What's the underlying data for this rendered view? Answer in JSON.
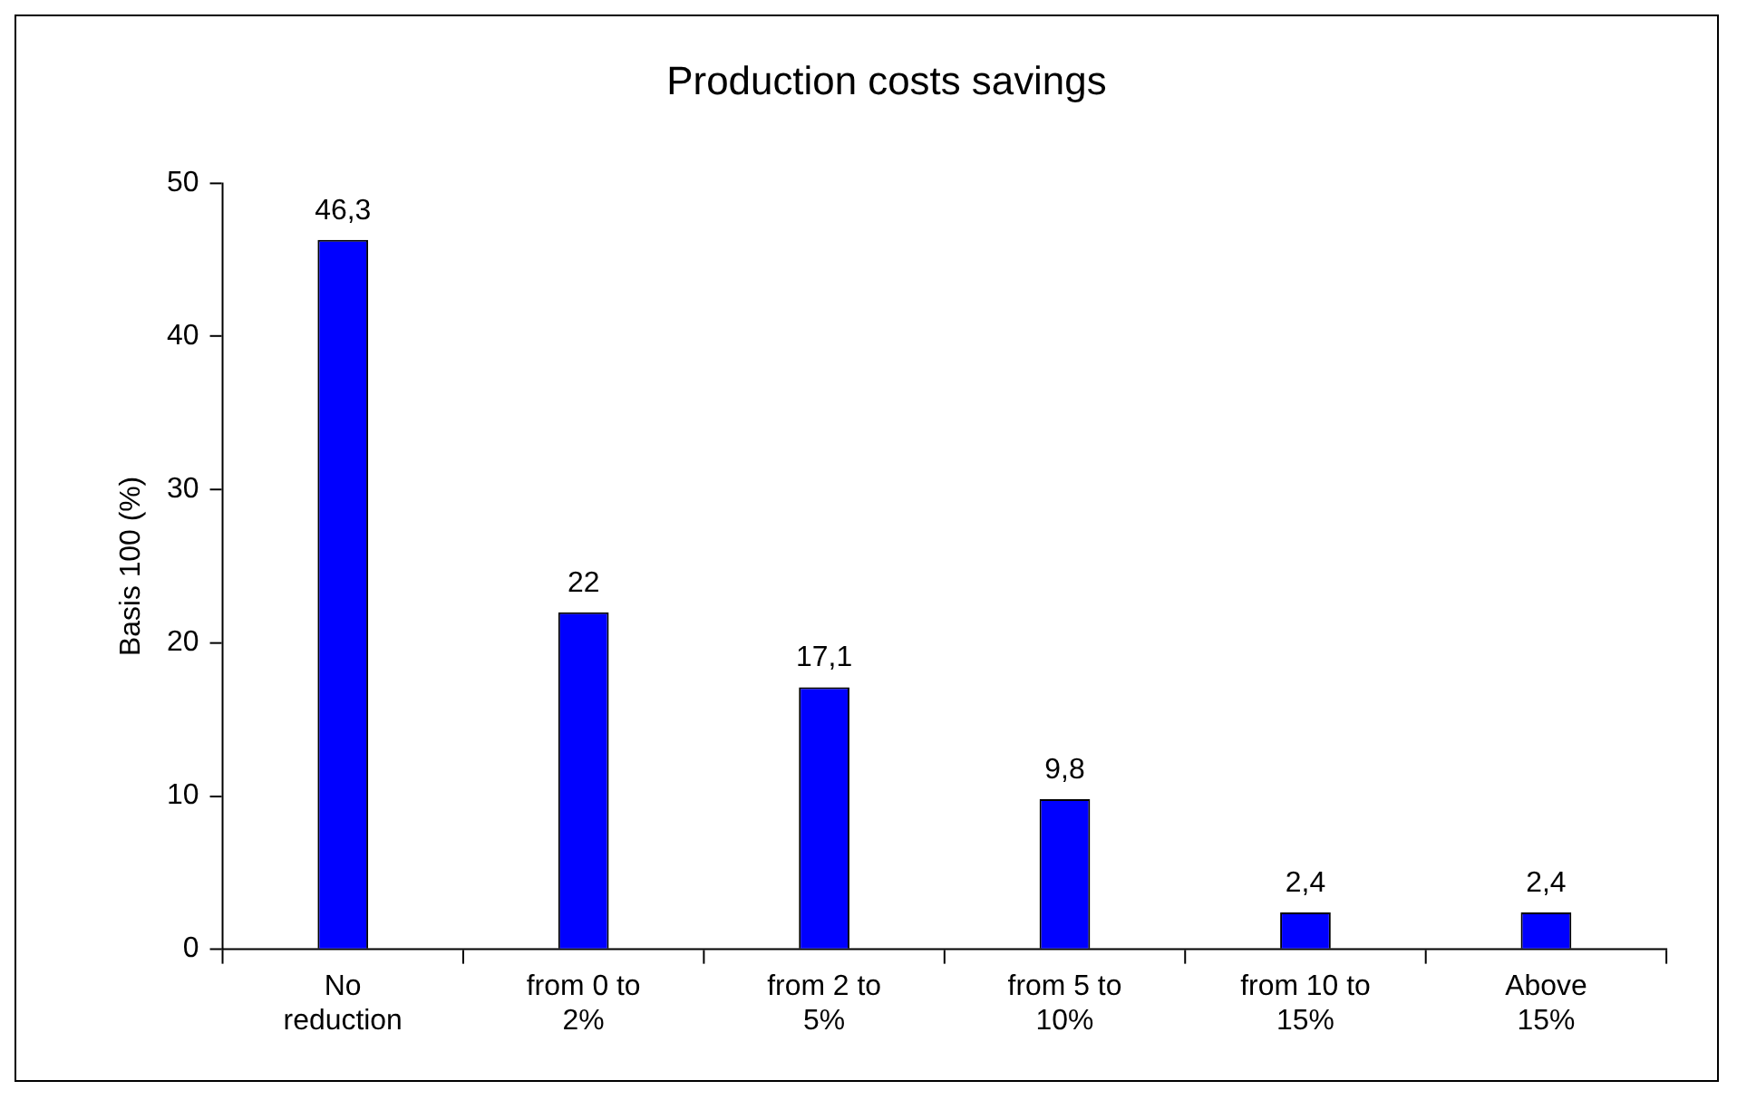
{
  "chart_data": {
    "type": "bar",
    "title": "Production costs savings",
    "ylabel": "Basis 100 (%)",
    "categories": [
      "No reduction",
      "from 0 to 2%",
      "from 2 to 5%",
      "from 5 to 10%",
      "from 10 to 15%",
      "Above 15%"
    ],
    "values": [
      46.3,
      22,
      17.1,
      9.8,
      2.4,
      2.4
    ],
    "value_labels": [
      "46,3",
      "22",
      "17,1",
      "9,8",
      "2,4",
      "2,4"
    ],
    "color": "#0000ff",
    "ylim": [
      0,
      50
    ],
    "yticks": [
      0,
      10,
      20,
      30,
      40,
      50
    ],
    "grid": false,
    "legend": false
  }
}
